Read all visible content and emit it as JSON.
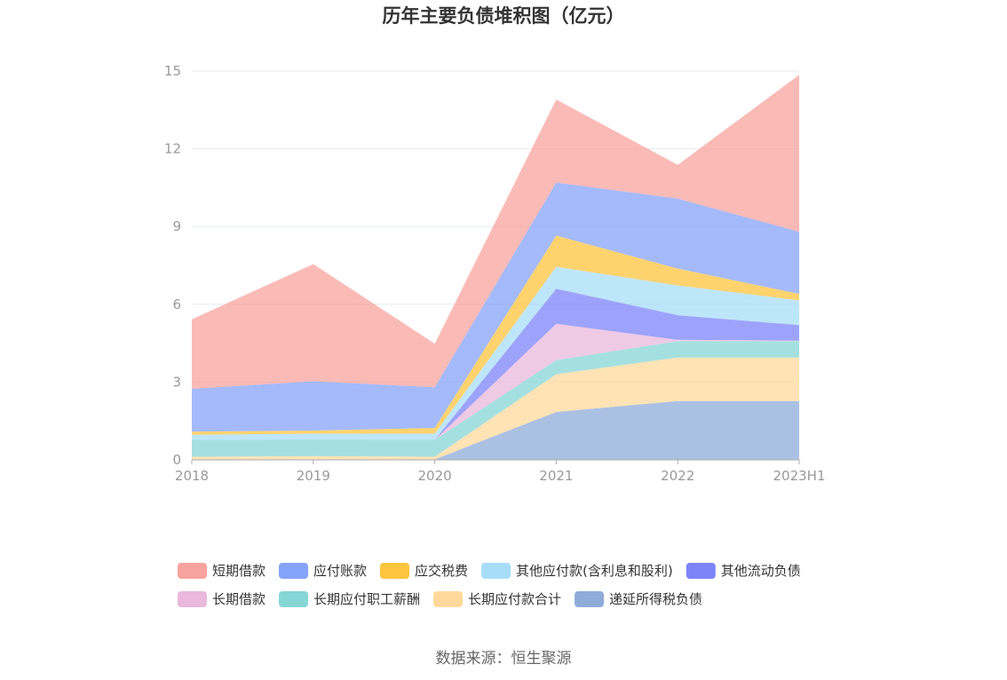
{
  "chart_data": {
    "type": "area",
    "stacked": true,
    "title": "历年主要负债堆积图（亿元）",
    "categories": [
      "2018",
      "2019",
      "2020",
      "2021",
      "2022",
      "2023H1"
    ],
    "ylim": [
      0,
      15
    ],
    "yticks": [
      0,
      3,
      6,
      9,
      12,
      15
    ],
    "grid": true,
    "legend_position": "bottom",
    "series": [
      {
        "name": "递延所得税负债",
        "color": "#8facd9",
        "values": [
          0.02,
          0.02,
          0.02,
          1.85,
          2.27,
          2.27
        ]
      },
      {
        "name": "长期应付款合计",
        "color": "#ffd99b",
        "values": [
          0.1,
          0.12,
          0.1,
          1.45,
          1.68,
          1.68
        ]
      },
      {
        "name": "长期应付职工薪酬",
        "color": "#87d6d6",
        "values": [
          0.65,
          0.65,
          0.65,
          0.55,
          0.63,
          0.63
        ]
      },
      {
        "name": "长期借款",
        "color": "#e9b8dc",
        "values": [
          0,
          0,
          0,
          1.4,
          0.05,
          0.02
        ]
      },
      {
        "name": "其他流动负债",
        "color": "#7c84f8",
        "values": [
          0,
          0,
          0,
          1.35,
          0.95,
          0.6
        ]
      },
      {
        "name": "其他应付款(含利息和股利)",
        "color": "#a8ddf8",
        "values": [
          0.2,
          0.22,
          0.24,
          0.85,
          1.15,
          0.95
        ]
      },
      {
        "name": "应交税费",
        "color": "#fdc43d",
        "values": [
          0.12,
          0.12,
          0.22,
          1.2,
          0.65,
          0.25
        ]
      },
      {
        "name": "应付账款",
        "color": "#86a3fa",
        "values": [
          1.65,
          1.9,
          1.57,
          2.05,
          2.7,
          2.4
        ]
      },
      {
        "name": "短期借款",
        "color": "#f8a39d",
        "values": [
          2.68,
          4.52,
          1.68,
          3.2,
          1.3,
          6.05
        ]
      }
    ]
  },
  "legend": {
    "rows": [
      [
        "短期借款",
        "应付账款",
        "应交税费",
        "其他应付款(含利息和股利)",
        "其他流动负债"
      ],
      [
        "长期借款",
        "长期应付职工薪酬",
        "长期应付款合计",
        "递延所得税负债"
      ]
    ]
  },
  "colors": {
    "grid": "#e6e9f3",
    "axis": "#aaaaaa"
  },
  "source": "数据来源：恒生聚源"
}
